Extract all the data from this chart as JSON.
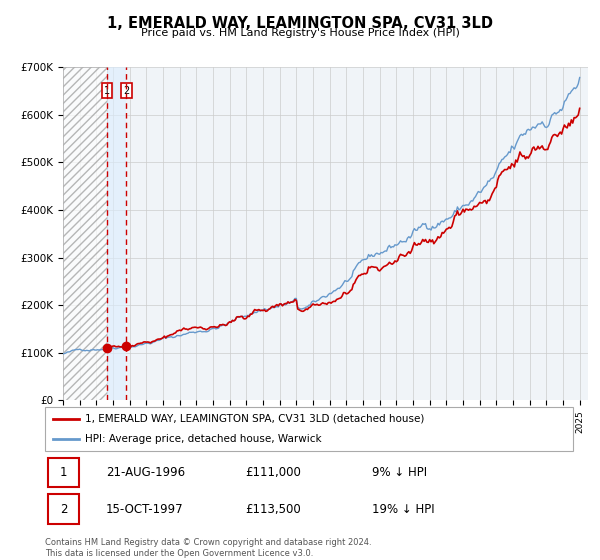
{
  "title": "1, EMERALD WAY, LEAMINGTON SPA, CV31 3LD",
  "subtitle": "Price paid vs. HM Land Registry's House Price Index (HPI)",
  "legend_label_red": "1, EMERALD WAY, LEAMINGTON SPA, CV31 3LD (detached house)",
  "legend_label_blue": "HPI: Average price, detached house, Warwick",
  "transaction1_label": "1",
  "transaction1_date": "21-AUG-1996",
  "transaction1_price": "£111,000",
  "transaction1_hpi": "9% ↓ HPI",
  "transaction2_label": "2",
  "transaction2_date": "15-OCT-1997",
  "transaction2_price": "£113,500",
  "transaction2_hpi": "19% ↓ HPI",
  "footer1": "Contains HM Land Registry data © Crown copyright and database right 2024.",
  "footer2": "This data is licensed under the Open Government Licence v3.0.",
  "xmin": 1994.0,
  "xmax": 2025.5,
  "ymin": 0,
  "ymax": 700000,
  "red_color": "#cc0000",
  "blue_color": "#6699cc",
  "dot1_x": 1996.64,
  "dot1_y": 111000,
  "dot2_x": 1997.79,
  "dot2_y": 113500,
  "vline1_x": 1996.64,
  "vline2_x": 1997.79,
  "background_chart": "#f0f4f8",
  "grid_color": "#cccccc",
  "yticks": [
    0,
    100000,
    200000,
    300000,
    400000,
    500000,
    600000,
    700000
  ],
  "ytick_labels": [
    "£0",
    "£100K",
    "£200K",
    "£300K",
    "£400K",
    "£500K",
    "£600K",
    "£700K"
  ]
}
